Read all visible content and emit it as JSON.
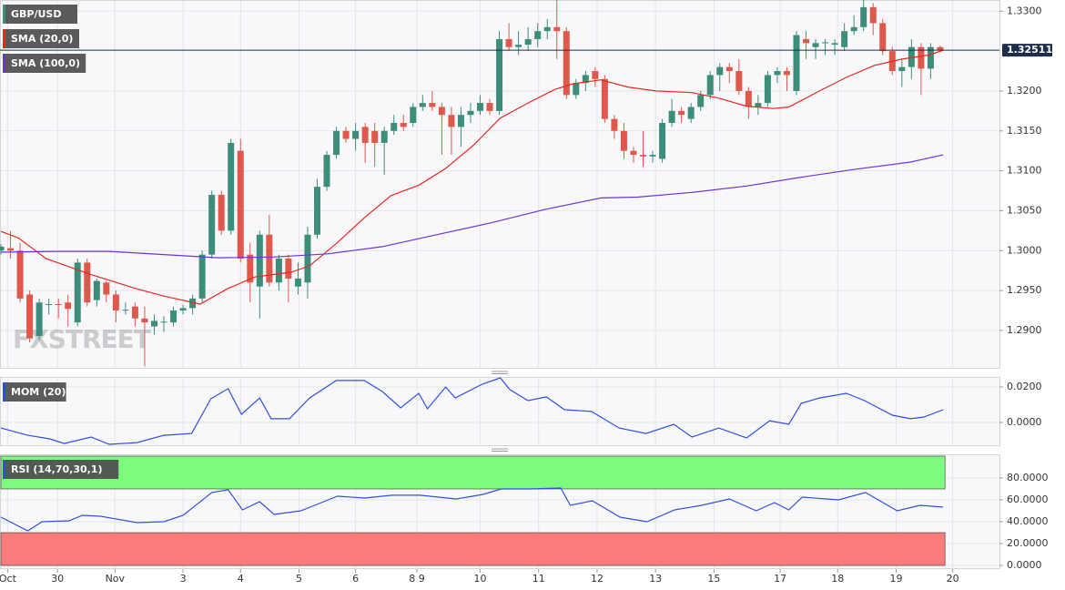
{
  "chart_data": [
    {
      "type": "candlestick",
      "name": "GBP/USD",
      "up_color": "#3d8d7b",
      "down_color": "#e0584b",
      "candles": [
        [
          1.3,
          1.3008,
          1.2995,
          1.3005
        ],
        [
          1.3003,
          1.3025,
          1.299,
          1.3
        ],
        [
          1.3,
          1.301,
          1.2935,
          1.294
        ],
        [
          1.2945,
          1.295,
          1.2885,
          1.289
        ],
        [
          1.2893,
          1.294,
          1.2888,
          1.2935
        ],
        [
          1.2932,
          1.294,
          1.292,
          1.2933
        ],
        [
          1.2933,
          1.294,
          1.2915,
          1.2932
        ],
        [
          1.2935,
          1.2945,
          1.2905,
          1.2927
        ],
        [
          1.291,
          1.299,
          1.2905,
          1.2985
        ],
        [
          1.2985,
          1.299,
          1.293,
          1.2935
        ],
        [
          1.2938,
          1.2965,
          1.293,
          1.2962
        ],
        [
          1.296,
          1.2962,
          1.2935,
          1.2945
        ],
        [
          1.2945,
          1.295,
          1.291,
          1.2925
        ],
        [
          1.2925,
          1.2935,
          1.292,
          1.2926
        ],
        [
          1.293,
          1.2935,
          1.2905,
          1.2915
        ],
        [
          1.2915,
          1.293,
          1.2855,
          1.291
        ],
        [
          1.2905,
          1.292,
          1.2895,
          1.2912
        ],
        [
          1.291,
          1.2918,
          1.2898,
          1.2911
        ],
        [
          1.291,
          1.293,
          1.2905,
          1.2925
        ],
        [
          1.2925,
          1.2932,
          1.292,
          1.2928
        ],
        [
          1.2928,
          1.2945,
          1.292,
          1.294
        ],
        [
          1.294,
          1.3,
          1.2935,
          1.2995
        ],
        [
          1.2995,
          1.3075,
          1.299,
          1.307
        ],
        [
          1.307,
          1.3075,
          1.302,
          1.3025
        ],
        [
          1.3025,
          1.314,
          1.302,
          1.3135
        ],
        [
          1.3125,
          1.314,
          1.2985,
          1.299
        ],
        [
          1.2995,
          1.301,
          1.2935,
          1.296
        ],
        [
          1.2955,
          1.3025,
          1.2915,
          1.302
        ],
        [
          1.302,
          1.3045,
          1.2955,
          1.296
        ],
        [
          1.296,
          1.2995,
          1.295,
          1.299
        ],
        [
          1.299,
          1.2995,
          1.2935,
          1.2965
        ],
        [
          1.2955,
          1.2985,
          1.2945,
          1.2965
        ],
        [
          1.296,
          1.303,
          1.294,
          1.302
        ],
        [
          1.302,
          1.309,
          1.3015,
          1.308
        ],
        [
          1.308,
          1.3125,
          1.3075,
          1.312
        ],
        [
          1.312,
          1.3155,
          1.3115,
          1.315
        ],
        [
          1.315,
          1.3155,
          1.3135,
          1.314
        ],
        [
          1.314,
          1.316,
          1.3125,
          1.315
        ],
        [
          1.3155,
          1.316,
          1.311,
          1.3135
        ],
        [
          1.315,
          1.316,
          1.3105,
          1.3135
        ],
        [
          1.3135,
          1.3155,
          1.3095,
          1.315
        ],
        [
          1.315,
          1.317,
          1.3145,
          1.316
        ],
        [
          1.316,
          1.317,
          1.315,
          1.3155
        ],
        [
          1.316,
          1.3185,
          1.3155,
          1.318
        ],
        [
          1.318,
          1.3195,
          1.3175,
          1.3185
        ],
        [
          1.3185,
          1.32,
          1.3175,
          1.318
        ],
        [
          1.318,
          1.3185,
          1.312,
          1.317
        ],
        [
          1.317,
          1.318,
          1.312,
          1.3155
        ],
        [
          1.3155,
          1.318,
          1.313,
          1.317
        ],
        [
          1.317,
          1.3185,
          1.316,
          1.3175
        ],
        [
          1.3175,
          1.3195,
          1.317,
          1.3185
        ],
        [
          1.3185,
          1.319,
          1.317,
          1.3175
        ],
        [
          1.3175,
          1.3275,
          1.317,
          1.3265
        ],
        [
          1.3265,
          1.3285,
          1.325,
          1.3255
        ],
        [
          1.3255,
          1.3275,
          1.3245,
          1.3258
        ],
        [
          1.3258,
          1.328,
          1.325,
          1.3265
        ],
        [
          1.3265,
          1.3285,
          1.3255,
          1.3275
        ],
        [
          1.3275,
          1.329,
          1.3265,
          1.328
        ],
        [
          1.328,
          1.3315,
          1.324,
          1.3275
        ],
        [
          1.3275,
          1.328,
          1.319,
          1.3195
        ],
        [
          1.3195,
          1.3215,
          1.319,
          1.321
        ],
        [
          1.321,
          1.3225,
          1.32,
          1.322
        ],
        [
          1.3225,
          1.323,
          1.3205,
          1.3215
        ],
        [
          1.3215,
          1.322,
          1.316,
          1.3165
        ],
        [
          1.3165,
          1.317,
          1.314,
          1.315
        ],
        [
          1.315,
          1.316,
          1.3115,
          1.3125
        ],
        [
          1.3125,
          1.313,
          1.311,
          1.312
        ],
        [
          1.312,
          1.315,
          1.3105,
          1.3118
        ],
        [
          1.3118,
          1.3125,
          1.311,
          1.312
        ],
        [
          1.3115,
          1.3165,
          1.311,
          1.316
        ],
        [
          1.316,
          1.319,
          1.3155,
          1.3175
        ],
        [
          1.3175,
          1.318,
          1.316,
          1.317
        ],
        [
          1.3165,
          1.3185,
          1.316,
          1.318
        ],
        [
          1.318,
          1.32,
          1.3175,
          1.3195
        ],
        [
          1.3195,
          1.3225,
          1.319,
          1.322
        ],
        [
          1.322,
          1.3235,
          1.32,
          1.323
        ],
        [
          1.323,
          1.3235,
          1.321,
          1.3225
        ],
        [
          1.3225,
          1.324,
          1.3195,
          1.32
        ],
        [
          1.32,
          1.3205,
          1.3165,
          1.318
        ],
        [
          1.318,
          1.3195,
          1.317,
          1.3185
        ],
        [
          1.3185,
          1.3225,
          1.318,
          1.322
        ],
        [
          1.322,
          1.323,
          1.321,
          1.3225
        ],
        [
          1.3225,
          1.323,
          1.32,
          1.322
        ],
        [
          1.32,
          1.3275,
          1.3195,
          1.327
        ],
        [
          1.3265,
          1.3275,
          1.324,
          1.326
        ],
        [
          1.3255,
          1.3265,
          1.324,
          1.326
        ],
        [
          1.326,
          1.3265,
          1.3245,
          1.3261
        ],
        [
          1.3258,
          1.3265,
          1.3245,
          1.326
        ],
        [
          1.3255,
          1.3285,
          1.325,
          1.3275
        ],
        [
          1.3275,
          1.3295,
          1.327,
          1.328
        ],
        [
          1.328,
          1.3315,
          1.3275,
          1.3305
        ],
        [
          1.3305,
          1.331,
          1.327,
          1.3285
        ],
        [
          1.3285,
          1.329,
          1.3245,
          1.325
        ],
        [
          1.325,
          1.3255,
          1.322,
          1.3225
        ],
        [
          1.3225,
          1.324,
          1.3205,
          1.323
        ],
        [
          1.323,
          1.3265,
          1.3215,
          1.3255
        ],
        [
          1.3255,
          1.326,
          1.3195,
          1.3228
        ],
        [
          1.3228,
          1.326,
          1.3215,
          1.3255
        ],
        [
          1.3255,
          1.3257,
          1.3249,
          1.3251
        ]
      ],
      "series": [
        {
          "name": "SMA (20,0)",
          "color": "#e8281d",
          "x": [
            0,
            1.8,
            4.7,
            9.4,
            14.2,
            17,
            20.8,
            23.6,
            26.5,
            30.3,
            32.2,
            35,
            37.9,
            40.7,
            43.6,
            46.4,
            49.3,
            52.1,
            55,
            57.8,
            59.7,
            62.6,
            65.4,
            68.3,
            72.1,
            74.9,
            77.8,
            80.6,
            82.2,
            85.4,
            88.2,
            91.1,
            94,
            96.8,
            98.3
          ],
          "values": [
            1.3024,
            1.3016,
            1.299,
            1.297,
            1.2952,
            1.2943,
            1.2933,
            1.2952,
            1.2967,
            1.2973,
            1.2981,
            1.3009,
            1.3041,
            1.3069,
            1.3082,
            1.3103,
            1.3132,
            1.3166,
            1.3185,
            1.3202,
            1.3209,
            1.3214,
            1.3205,
            1.32,
            1.3198,
            1.3191,
            1.3181,
            1.3178,
            1.318,
            1.32,
            1.3217,
            1.3232,
            1.324,
            1.3245,
            1.3251
          ]
        },
        {
          "name": "SMA (100,0)",
          "color": "#6a35d8",
          "x": [
            0,
            5.6,
            11.3,
            17,
            22.7,
            28.4,
            34.1,
            39.8,
            45.5,
            51.2,
            56.9,
            62.6,
            66.4,
            72.1,
            77.8,
            83.5,
            89.2,
            94.9,
            98.3
          ],
          "values": [
            1.2998,
            1.2999,
            1.2999,
            1.2995,
            1.2991,
            1.2992,
            1.2996,
            1.3005,
            1.302,
            1.3035,
            1.3052,
            1.3066,
            1.3067,
            1.3073,
            1.3081,
            1.3092,
            1.3102,
            1.3111,
            1.312
          ]
        }
      ],
      "last_price": {
        "value": 1.32511,
        "label": "1.32511"
      },
      "ylim": [
        1.2852,
        1.3314
      ],
      "yticks": [
        {
          "value": 1.29,
          "label": "1.2900"
        },
        {
          "value": 1.295,
          "label": "1.2950"
        },
        {
          "value": 1.3,
          "label": "1.3000"
        },
        {
          "value": 1.305,
          "label": "1.3050"
        },
        {
          "value": 1.31,
          "label": "1.3100"
        },
        {
          "value": 1.315,
          "label": "1.3150"
        },
        {
          "value": 1.32,
          "label": "1.3200"
        },
        {
          "value": 1.33,
          "label": "1.3300"
        }
      ],
      "watermark": "FXSTREET",
      "grid": true
    },
    {
      "type": "line",
      "series": [
        {
          "name": "MOM (20)",
          "color": "#2b4fe6",
          "x": [
            0,
            2.8,
            5.1,
            6.6,
            9.4,
            11.3,
            14.2,
            17,
            19.9,
            21.9,
            23.7,
            25.1,
            27,
            28.2,
            30.1,
            32.2,
            35,
            37.9,
            39.8,
            41.7,
            43.6,
            44.5,
            46.4,
            47.4,
            49.3,
            50.2,
            52.1,
            53.1,
            55,
            56.9,
            58.8,
            61.6,
            64.5,
            67.3,
            70.2,
            72.1,
            74.9,
            77.8,
            80.2,
            82.2,
            83.5,
            85.4,
            88.2,
            90.1,
            93,
            94.9,
            96.3,
            98.3
          ],
          "values": [
            -0.0031,
            -0.0072,
            -0.0092,
            -0.0118,
            -0.0082,
            -0.0123,
            -0.0113,
            -0.0072,
            -0.0062,
            0.0133,
            0.019,
            0.0046,
            0.0138,
            0.0021,
            0.0021,
            0.0138,
            0.0236,
            0.0236,
            0.0174,
            0.0082,
            0.0164,
            0.0077,
            0.02,
            0.0138,
            0.019,
            0.0215,
            0.0251,
            0.0185,
            0.0123,
            0.0144,
            0.0072,
            0.0062,
            -0.0031,
            -0.0062,
            -0.001,
            -0.0082,
            -0.0031,
            -0.0087,
            0.001,
            -0.001,
            0.0108,
            0.0138,
            0.0164,
            0.0123,
            0.0041,
            0.0021,
            0.0031,
            0.0072
          ]
        }
      ],
      "ylim": [
        -0.0133,
        0.0251
      ],
      "yticks": [
        {
          "value": 0,
          "label": "0.0000"
        },
        {
          "value": 0.02,
          "label": "0.0200"
        }
      ],
      "grid": true
    },
    {
      "type": "line",
      "series": [
        {
          "name": "RSI (14,70,30,1)",
          "color": "#3050e0",
          "x": [
            0,
            2.8,
            4.3,
            7.1,
            8.5,
            10.4,
            14.2,
            17,
            19,
            22,
            23.7,
            25.2,
            27,
            28.5,
            31.3,
            33.2,
            35.1,
            38,
            40.8,
            43.7,
            47.5,
            50.3,
            52.2,
            55.1,
            58.4,
            59.4,
            61.7,
            64.6,
            67.4,
            70.3,
            73.1,
            76,
            78.8,
            80.7,
            82.2,
            83.6,
            87.4,
            90.2,
            93.5,
            95.9,
            98.3
          ],
          "values": [
            44.2,
            31.7,
            40,
            40.8,
            45.8,
            45,
            39.2,
            40,
            45.8,
            66.7,
            69.2,
            50.8,
            58.3,
            46.7,
            50,
            56.7,
            63.3,
            61.7,
            64.2,
            64.2,
            60.8,
            65,
            70,
            70,
            70.8,
            55,
            59.2,
            44.2,
            40,
            50.8,
            55,
            60.8,
            50,
            57.5,
            50.8,
            62.5,
            60,
            66.7,
            50,
            55,
            53.3
          ]
        }
      ],
      "bands": [
        {
          "from": 70,
          "to": 100,
          "color": "#7cfb7c"
        },
        {
          "from": 0,
          "to": 30,
          "color": "#fb7b7b"
        }
      ],
      "ylim": [
        -3.3,
        100.8
      ],
      "yticks": [
        {
          "value": 0,
          "label": "0.0000"
        },
        {
          "value": 20,
          "label": "20.0000"
        },
        {
          "value": 40,
          "label": "40.0000"
        },
        {
          "value": 60,
          "label": "60.0000"
        },
        {
          "value": 80,
          "label": "80.0000"
        }
      ],
      "xticks": [
        {
          "value": 0.7,
          "label": "Oct"
        },
        {
          "value": 5.9,
          "label": "30"
        },
        {
          "value": 11.9,
          "label": "Nov"
        },
        {
          "value": 19,
          "label": "3"
        },
        {
          "value": 25,
          "label": "4"
        },
        {
          "value": 31.1,
          "label": "5"
        },
        {
          "value": 37,
          "label": "6"
        },
        {
          "value": 43.4,
          "label": "8 9"
        },
        {
          "value": 50,
          "label": "10"
        },
        {
          "value": 56.1,
          "label": "11"
        },
        {
          "value": 62.2,
          "label": "12"
        },
        {
          "value": 68.3,
          "label": "13"
        },
        {
          "value": 74.4,
          "label": "15"
        },
        {
          "value": 81.3,
          "label": "17"
        },
        {
          "value": 87.3,
          "label": "18"
        },
        {
          "value": 93.4,
          "label": "19"
        },
        {
          "value": 99.3,
          "label": "20"
        }
      ],
      "grid": true
    }
  ]
}
